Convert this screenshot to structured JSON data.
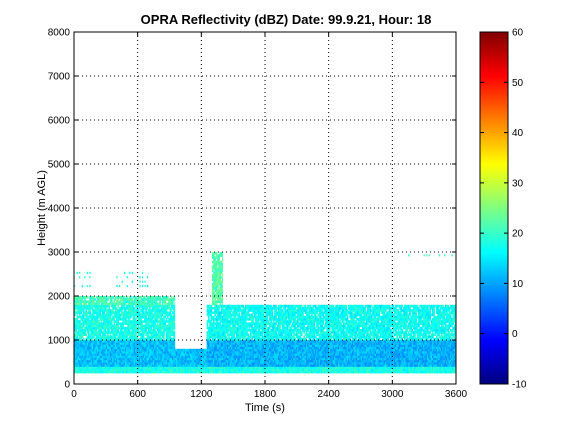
{
  "chart_data": {
    "type": "heatmap",
    "title": "OPRA Reflectivity (dBZ)  Date: 99.9.21, Hour: 18",
    "xlabel": "Time (s)",
    "ylabel": "Height (m AGL)",
    "xlim": [
      0,
      3600
    ],
    "ylim": [
      0,
      8000
    ],
    "x_ticks": [
      "0",
      "600",
      "1200",
      "1800",
      "2400",
      "3000",
      "3600"
    ],
    "y_ticks": [
      "0",
      "1000",
      "2000",
      "3000",
      "4000",
      "5000",
      "6000",
      "7000",
      "8000"
    ],
    "grid": true,
    "colormap": "jet",
    "colorbar": {
      "min": -10,
      "max": 60,
      "ticks": [
        "-10",
        "0",
        "10",
        "20",
        "30",
        "40",
        "50",
        "60"
      ]
    },
    "layers": [
      {
        "x": [
          0,
          3600
        ],
        "y": [
          250,
          400
        ],
        "dbz": 18
      },
      {
        "x": [
          0,
          950
        ],
        "y": [
          400,
          1000
        ],
        "dbz": 12
      },
      {
        "x": [
          950,
          1250
        ],
        "y": [
          400,
          800
        ],
        "dbz": 12
      },
      {
        "x": [
          1250,
          3600
        ],
        "y": [
          400,
          1000
        ],
        "dbz": 11
      },
      {
        "x": [
          0,
          950
        ],
        "y": [
          1000,
          1800
        ],
        "dbz": 18
      },
      {
        "x": [
          1250,
          3600
        ],
        "y": [
          1000,
          1800
        ],
        "dbz": 17
      },
      {
        "x": [
          0,
          950
        ],
        "y": [
          1800,
          2000
        ],
        "dbz": 21
      },
      {
        "x": [
          1300,
          1400
        ],
        "y": [
          1800,
          3000
        ],
        "dbz": 22
      }
    ],
    "echoes": [
      {
        "x": [
          0,
          150
        ],
        "y": [
          2200,
          2600
        ],
        "dbz": 19
      },
      {
        "x": [
          400,
          700
        ],
        "y": [
          2200,
          2600
        ],
        "dbz": 18
      },
      {
        "x": [
          3150,
          3600
        ],
        "y": [
          2900,
          3000
        ],
        "dbz": 20
      }
    ]
  }
}
